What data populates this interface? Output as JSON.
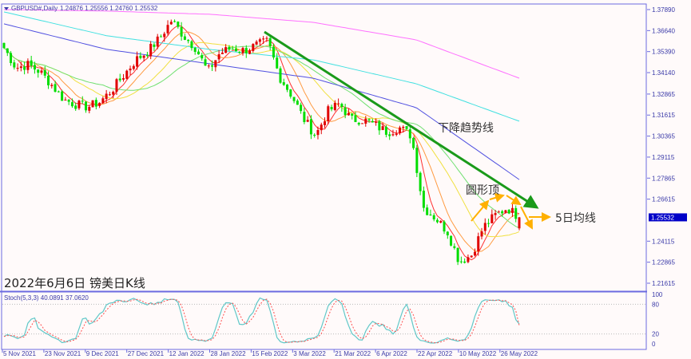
{
  "header": {
    "symbol": "GBPUSD#,Daily",
    "ohlc": "1.24876 1.25556 1.24760 1.25532"
  },
  "title": "2022年6月6日 镑美日K线",
  "annotations": {
    "trendline": "下降趋势线",
    "rounded_top": "圆形顶",
    "ma5": "5日均线"
  },
  "colors": {
    "background": "#fffafa",
    "frame": "#6b6be0",
    "up_candle": "#e00000",
    "down_candle": "#00dd00",
    "trendline": "#1a9a1a",
    "annotation_arrow": "#ffb000",
    "price_tag": "#0000c8"
  },
  "chart_data": [
    {
      "type": "candlestick",
      "symbol": "GBPUSD#",
      "timeframe": "Daily",
      "last_bar": {
        "open": 1.24876,
        "high": 1.25556,
        "low": 1.2476,
        "close": 1.25532
      },
      "current_price": "1.25532",
      "y_ticks": [
        "1.37890",
        "1.36640",
        "1.35390",
        "1.34140",
        "1.32865",
        "1.31615",
        "1.30365",
        "1.29115",
        "1.27865",
        "1.26615",
        "1.25365",
        "1.24115",
        "1.22865",
        "1.21615"
      ],
      "ylim": [
        1.2113,
        1.3845
      ],
      "x_ticks": [
        "5 Nov 2021",
        "23 Nov 2021",
        "9 Dec 2021",
        "27 Dec 2021",
        "12 Jan 2022",
        "28 Jan 2022",
        "15 Feb 2022",
        "3 Mar 2022",
        "21 Mar 2022",
        "6 Apr 2022",
        "22 Apr 2022",
        "10 May 2022",
        "26 May 2022"
      ],
      "approx_closes": [
        1.3561,
        1.3443,
        1.3461,
        1.342,
        1.334,
        1.3253,
        1.3225,
        1.321,
        1.324,
        1.331,
        1.34,
        1.349,
        1.354,
        1.362,
        1.3727,
        1.3632,
        1.3561,
        1.3419,
        1.353,
        1.356,
        1.3545,
        1.3575,
        1.36,
        1.339,
        1.328,
        1.314,
        1.3039,
        1.3182,
        1.323,
        1.3134,
        1.3134,
        1.31,
        1.306,
        1.3087,
        1.3039,
        1.2612,
        1.255,
        1.247,
        1.229,
        1.2328,
        1.2495,
        1.2565,
        1.261,
        1.25532
      ],
      "moving_averages": [
        {
          "color": "#ff3030",
          "computed_period": 5
        },
        {
          "color": "#ff9a40",
          "computed_period": 10
        },
        {
          "color": "#f0e040",
          "computed_period": 20
        },
        {
          "color": "#70e070",
          "computed_period": 30
        },
        {
          "color": "#5050e0",
          "values": [
            1.3704,
            1.3552,
            1.3466,
            1.3381,
            1.3206,
            1.2778
          ]
        },
        {
          "color": "#40e0e0",
          "values": [
            1.3775,
            1.3633,
            1.3552,
            1.349,
            1.3348,
            1.3125
          ]
        },
        {
          "color": "#ff70ff",
          "values": [
            1.3789,
            1.378,
            1.3761,
            1.3713,
            1.3609,
            1.3381
          ]
        }
      ],
      "grid": false
    },
    {
      "type": "line",
      "indicator": "Stoch(5,3,3)",
      "main_value": "40.0891",
      "signal_value": "37.0620",
      "label": "Stoch(5,3,3) 40.0891 37.0620",
      "y_ticks": [
        "100",
        "80",
        "20",
        "0"
      ],
      "levels": [
        80,
        20
      ],
      "ylim": [
        0,
        100
      ],
      "main_color": "#60c8c8",
      "signal_color": "#ff5050"
    }
  ]
}
